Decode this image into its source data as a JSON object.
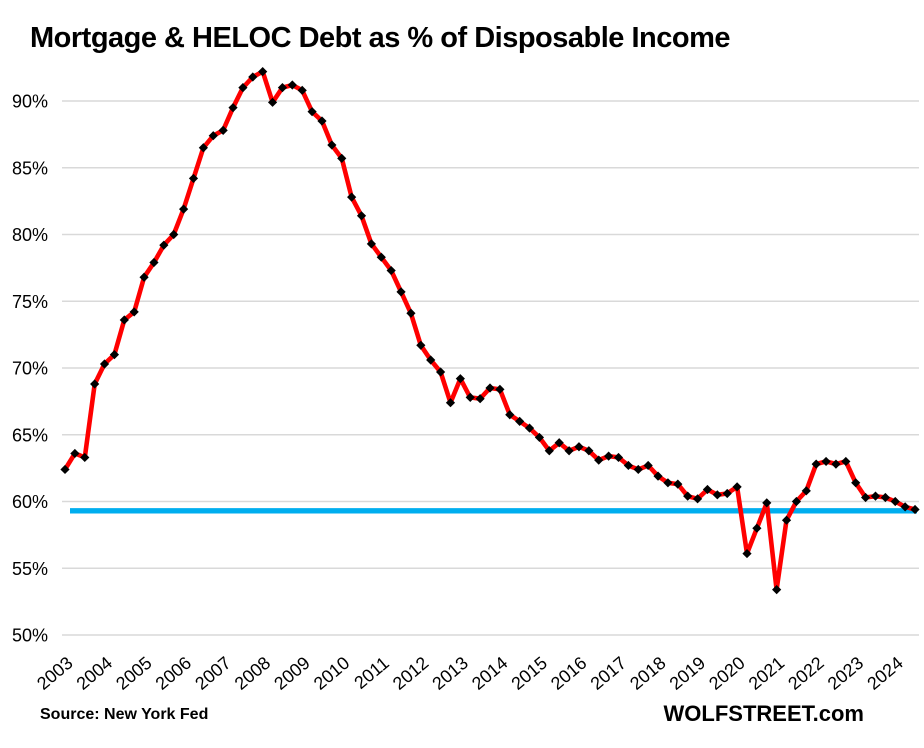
{
  "title": "Mortgage & HELOC Debt as % of Disposable Income",
  "footer": {
    "source": "Source: New York Fed",
    "brand": "WOLFSTREET.com"
  },
  "colors": {
    "series_line": "#FF0000",
    "marker": "#000000",
    "reference_line": "#00AEEF",
    "gridline": "#D9D9D9",
    "text": "#000000",
    "background": "#FFFFFF"
  },
  "chart_data": {
    "type": "line",
    "title": "Mortgage & HELOC Debt as % of Disposable Income",
    "xlabel": "",
    "ylabel": "",
    "frequency": "quarterly",
    "start_period": "2003 Q1",
    "end_period": "2024 Q3",
    "x_tick_labels": [
      "2003",
      "2004",
      "2005",
      "2006",
      "2007",
      "2008",
      "2009",
      "2010",
      "2011",
      "2012",
      "2013",
      "2014",
      "2015",
      "2016",
      "2017",
      "2018",
      "2019",
      "2020",
      "2021",
      "2022",
      "2023",
      "2024"
    ],
    "y_ticks": [
      50,
      55,
      60,
      65,
      70,
      75,
      80,
      85,
      90
    ],
    "y_tick_labels": [
      "50%",
      "55%",
      "60%",
      "65%",
      "70%",
      "75%",
      "80%",
      "85%",
      "90%"
    ],
    "ylim": [
      50,
      93
    ],
    "grid": "horizontal",
    "legend": "none",
    "series": [
      {
        "name": "Mortgage & HELOC debt as % of disposable income",
        "color": "#FF0000",
        "marker": "diamond",
        "marker_color": "#000000",
        "values": [
          62.4,
          63.6,
          63.3,
          68.8,
          70.3,
          71.0,
          73.6,
          74.2,
          76.8,
          77.9,
          79.2,
          80.0,
          81.9,
          84.2,
          86.5,
          87.4,
          87.8,
          89.5,
          91.0,
          91.8,
          92.2,
          89.9,
          91.0,
          91.2,
          90.8,
          89.2,
          88.5,
          86.7,
          85.7,
          82.8,
          81.4,
          79.3,
          78.3,
          77.3,
          75.7,
          74.1,
          71.7,
          70.6,
          69.7,
          67.4,
          69.2,
          67.8,
          67.7,
          68.5,
          68.4,
          66.5,
          66.0,
          65.5,
          64.8,
          63.8,
          64.4,
          63.8,
          64.1,
          63.8,
          63.1,
          63.4,
          63.3,
          62.7,
          62.4,
          62.7,
          61.9,
          61.4,
          61.3,
          60.4,
          60.2,
          60.9,
          60.5,
          60.6,
          61.1,
          56.1,
          58.0,
          59.9,
          53.4,
          58.6,
          60.0,
          60.8,
          62.8,
          63.0,
          62.8,
          63.0,
          61.4,
          60.3,
          60.4,
          60.3,
          60.0,
          59.6,
          59.4
        ]
      }
    ],
    "reference_line": {
      "orientation": "horizontal",
      "value": 59.3,
      "color": "#00AEEF"
    }
  }
}
